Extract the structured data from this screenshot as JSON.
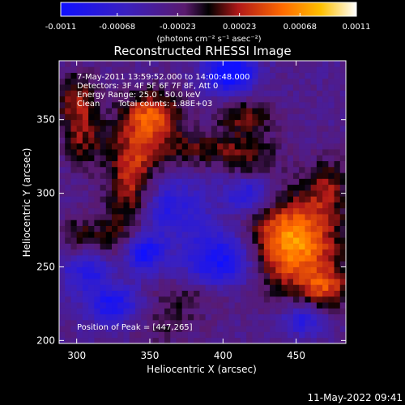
{
  "colorbar": {
    "ticks": [
      "-0.0011",
      "-0.00068",
      "-0.00023",
      "0.00023",
      "0.00068",
      "0.0011"
    ],
    "tick_values": [
      -0.0011,
      -0.00068,
      -0.00023,
      0.00023,
      0.00068,
      0.0011
    ],
    "range": [
      -0.0011,
      0.0011
    ],
    "unit_label": "(photons cm⁻² s⁻¹ asec⁻²)",
    "colors": {
      "low": "#1010ff",
      "mid": "#5a1a6e",
      "high": "#ffffff"
    }
  },
  "chart_data": {
    "type": "heatmap",
    "title": "Reconstructed RHESSI Image",
    "xlabel": "Heliocentric X (arcsec)",
    "ylabel": "Heliocentric Y (arcsec)",
    "xlim": [
      288,
      484
    ],
    "ylim": [
      198,
      390
    ],
    "xticks": [
      300,
      350,
      400,
      450
    ],
    "yticks": [
      200,
      250,
      300,
      350
    ],
    "xtick_labels": [
      "300",
      "350",
      "400",
      "450"
    ],
    "ytick_labels": [
      "200",
      "250",
      "300",
      "350"
    ],
    "peak": [
      447,
      265
    ],
    "sources": [
      {
        "x": 447,
        "y": 267,
        "sx": 22,
        "sy": 22,
        "amp": 0.95
      },
      {
        "x": 352,
        "y": 352,
        "sx": 14,
        "sy": 12,
        "amp": 0.7
      },
      {
        "x": 338,
        "y": 306,
        "sx": 12,
        "sy": 26,
        "amp": 0.65
      },
      {
        "x": 300,
        "y": 363,
        "sx": 10,
        "sy": 14,
        "amp": 0.45
      },
      {
        "x": 305,
        "y": 335,
        "sx": 10,
        "sy": 14,
        "amp": 0.35
      },
      {
        "x": 385,
        "y": 330,
        "sx": 30,
        "sy": 8,
        "amp": 0.35
      },
      {
        "x": 470,
        "y": 235,
        "sx": 12,
        "sy": 10,
        "amp": 0.5
      },
      {
        "x": 415,
        "y": 352,
        "sx": 14,
        "sy": 10,
        "amp": 0.4
      },
      {
        "x": 325,
        "y": 262,
        "sx": 14,
        "sy": 16,
        "amp": 0.35
      },
      {
        "x": 300,
        "y": 270,
        "sx": 10,
        "sy": 10,
        "amp": 0.3
      },
      {
        "x": 472,
        "y": 305,
        "sx": 10,
        "sy": 14,
        "amp": 0.35
      },
      {
        "x": 378,
        "y": 230,
        "sx": 20,
        "sy": 8,
        "amp": 0.25
      },
      {
        "x": 418,
        "y": 318,
        "sx": 12,
        "sy": 10,
        "amp": 0.3
      },
      {
        "x": 360,
        "y": 210,
        "sx": 18,
        "sy": 10,
        "amp": 0.2
      }
    ],
    "minima": [
      {
        "x": 405,
        "y": 382,
        "sx": 12,
        "sy": 10,
        "amp": 0.9
      },
      {
        "x": 345,
        "y": 260,
        "sx": 10,
        "sy": 10,
        "amp": 0.8
      },
      {
        "x": 310,
        "y": 250,
        "sx": 14,
        "sy": 10,
        "amp": 0.6
      },
      {
        "x": 400,
        "y": 255,
        "sx": 18,
        "sy": 14,
        "amp": 0.7
      },
      {
        "x": 360,
        "y": 290,
        "sx": 20,
        "sy": 14,
        "amp": 0.5
      },
      {
        "x": 418,
        "y": 300,
        "sx": 12,
        "sy": 10,
        "amp": 0.6
      },
      {
        "x": 325,
        "y": 225,
        "sx": 14,
        "sy": 10,
        "amp": 0.6
      },
      {
        "x": 455,
        "y": 215,
        "sx": 10,
        "sy": 8,
        "amp": 0.5
      }
    ]
  },
  "annotations": {
    "line1": "7-May-2011 13:59:52.000 to 14:00:48.000",
    "line2": "Detectors: 3F 4F 5F 6F 7F 8F, Att 0",
    "line3": "Energy Range: 25.0 - 50.0 keV",
    "line4_left": "Clean",
    "line4_right": "Total counts: 1.88E+03",
    "peak_label": "Position of Peak = [447,265]"
  },
  "footer": {
    "timestamp": "11-May-2022 09:41"
  }
}
